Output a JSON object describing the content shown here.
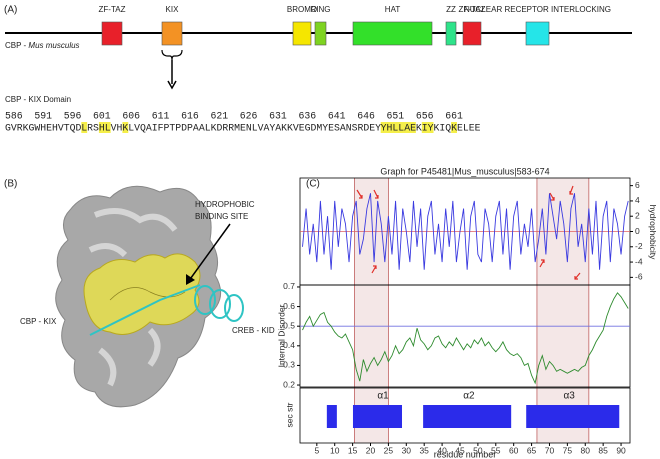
{
  "panel_a": {
    "label": "(A)",
    "protein": "CBP - ",
    "species": "Mus musculus",
    "domains": [
      {
        "name": "ZF-TAZ",
        "color": "#e8202a",
        "start": 102,
        "end": 122
      },
      {
        "name": "KIX",
        "color": "#f39224",
        "start": 162,
        "end": 182
      },
      {
        "name": "BROMO",
        "color": "#f5e600",
        "start": 293,
        "end": 311
      },
      {
        "name": "RING",
        "color": "#7ed321",
        "start": 315,
        "end": 326
      },
      {
        "name": "HAT",
        "color": "#33e02a",
        "start": 353,
        "end": 432
      },
      {
        "name": "ZZ",
        "color": "#2ee38a",
        "start": 446,
        "end": 456
      },
      {
        "name": "ZF-TAZ",
        "color": "#e8202a",
        "start": 463,
        "end": 481
      },
      {
        "name": "NUCLEAR RECEPTOR INTERLOCKING",
        "color": "#25e5e8",
        "start": 526,
        "end": 549
      }
    ],
    "kix_title": "CBP - KIX Domain",
    "positions": [
      586,
      591,
      596,
      601,
      606,
      611,
      616,
      621,
      626,
      631,
      636,
      641,
      646,
      651,
      656,
      661
    ],
    "sequence": [
      {
        "text": "GVRKGWHEHVTQD",
        "highlight": false
      },
      {
        "text": "L",
        "highlight": true
      },
      {
        "text": "RS",
        "highlight": false
      },
      {
        "text": "HL",
        "highlight": true
      },
      {
        "text": "VH",
        "highlight": false
      },
      {
        "text": "K",
        "highlight": true
      },
      {
        "text": "LVQAIFPTPDPAALKDRRMENLVAYAKKVEGDMYESANSRDEY",
        "highlight": false
      },
      {
        "text": "YHLLAE",
        "highlight": true
      },
      {
        "text": "K",
        "highlight": false
      },
      {
        "text": "IY",
        "highlight": true
      },
      {
        "text": "KIQ",
        "highlight": false
      },
      {
        "text": "K",
        "highlight": true
      },
      {
        "text": "ELEE",
        "highlight": false
      }
    ]
  },
  "panel_b": {
    "label": "(B)",
    "site_label": [
      "HYDROPHOBIC",
      "BINDING SITE"
    ],
    "kix_label": "CBP - KIX",
    "kid_label": "CREB - KID"
  },
  "panel_c": {
    "label": "(C)",
    "title": "Graph for P45481|Mus_musculus|583-674",
    "xlabel": "residue number",
    "xlim": [
      0.3,
      92.5
    ],
    "xticks": [
      5,
      10,
      15,
      20,
      25,
      30,
      35,
      40,
      45,
      50,
      55,
      60,
      65,
      70,
      75,
      80,
      85,
      90
    ],
    "regions": [
      [
        15.5,
        25
      ],
      [
        66.5,
        81
      ]
    ],
    "x": [
      1,
      2,
      3,
      4,
      5,
      6,
      7,
      8,
      9,
      10,
      11,
      12,
      13,
      14,
      15,
      16,
      17,
      18,
      19,
      20,
      21,
      22,
      23,
      24,
      25,
      26,
      27,
      28,
      29,
      30,
      31,
      32,
      33,
      34,
      35,
      36,
      37,
      38,
      39,
      40,
      41,
      42,
      43,
      44,
      45,
      46,
      47,
      48,
      49,
      50,
      51,
      52,
      53,
      54,
      55,
      56,
      57,
      58,
      59,
      60,
      61,
      62,
      63,
      64,
      65,
      66,
      67,
      68,
      69,
      70,
      71,
      72,
      73,
      74,
      75,
      76,
      77,
      78,
      79,
      80,
      81,
      82,
      83,
      84,
      85,
      86,
      87,
      88,
      89,
      90,
      91,
      92
    ],
    "hydrophobicity": {
      "ylabel": "hydrophobicity",
      "color": "#3a3ae0",
      "ylim": [
        -7,
        7
      ],
      "yticks": [
        -6,
        -4,
        -2,
        0,
        2,
        4,
        6
      ],
      "reference": 0,
      "values": [
        -2,
        3,
        -3,
        1,
        -4,
        4,
        -3,
        2,
        -5,
        4,
        -2,
        3,
        1,
        -4,
        2,
        4,
        -3,
        -1,
        3,
        5,
        -4,
        4,
        1,
        -4,
        2,
        -3,
        4,
        -5,
        3,
        0,
        -4,
        4,
        -2,
        3,
        -5,
        2,
        4,
        -3,
        1,
        -4,
        3,
        -2,
        4,
        -4,
        0,
        3,
        -5,
        2,
        4,
        -3,
        -4,
        3,
        1,
        -4,
        2,
        4,
        -3,
        3,
        -5,
        2,
        4,
        -3,
        1,
        -2,
        3,
        -4,
        -1,
        3,
        -3,
        5,
        2,
        -1,
        4,
        1,
        -4,
        3,
        5,
        -2,
        1,
        -4,
        3,
        -3,
        4,
        -5,
        2,
        4,
        -4,
        3,
        1,
        -3,
        2,
        4
      ]
    },
    "disorder": {
      "ylabel": "Internal Disorder",
      "color": "#2e8b2e",
      "ylim": [
        0.19,
        0.71
      ],
      "yticks": [
        0.2,
        0.3,
        0.4,
        0.5,
        0.6,
        0.7
      ],
      "reference": 0.5,
      "values": [
        0.48,
        0.52,
        0.55,
        0.5,
        0.53,
        0.56,
        0.57,
        0.52,
        0.5,
        0.47,
        0.45,
        0.44,
        0.46,
        0.42,
        0.38,
        0.28,
        0.22,
        0.33,
        0.27,
        0.31,
        0.34,
        0.3,
        0.33,
        0.37,
        0.32,
        0.35,
        0.4,
        0.36,
        0.38,
        0.42,
        0.44,
        0.4,
        0.49,
        0.43,
        0.41,
        0.38,
        0.4,
        0.44,
        0.45,
        0.41,
        0.39,
        0.42,
        0.4,
        0.44,
        0.41,
        0.38,
        0.41,
        0.39,
        0.43,
        0.41,
        0.44,
        0.4,
        0.42,
        0.39,
        0.37,
        0.39,
        0.42,
        0.38,
        0.36,
        0.35,
        0.36,
        0.34,
        0.3,
        0.31,
        0.25,
        0.21,
        0.3,
        0.35,
        0.28,
        0.32,
        0.3,
        0.27,
        0.28,
        0.27,
        0.26,
        0.27,
        0.28,
        0.27,
        0.29,
        0.3,
        0.35,
        0.38,
        0.42,
        0.45,
        0.48,
        0.55,
        0.6,
        0.64,
        0.67,
        0.65,
        0.62,
        0.59
      ]
    },
    "secondary_structure": {
      "ylabel": "sec str",
      "color": "#2b2bea",
      "segments": [
        [
          7.8,
          10.6
        ],
        [
          15.1,
          28.8
        ],
        [
          34.7,
          59.3
        ],
        [
          63.5,
          89.5
        ]
      ],
      "helices": [
        {
          "label": "α1",
          "position": 23.5
        },
        {
          "label": "α2",
          "position": 47.5
        },
        {
          "label": "α3",
          "position": 75.5
        }
      ]
    }
  }
}
